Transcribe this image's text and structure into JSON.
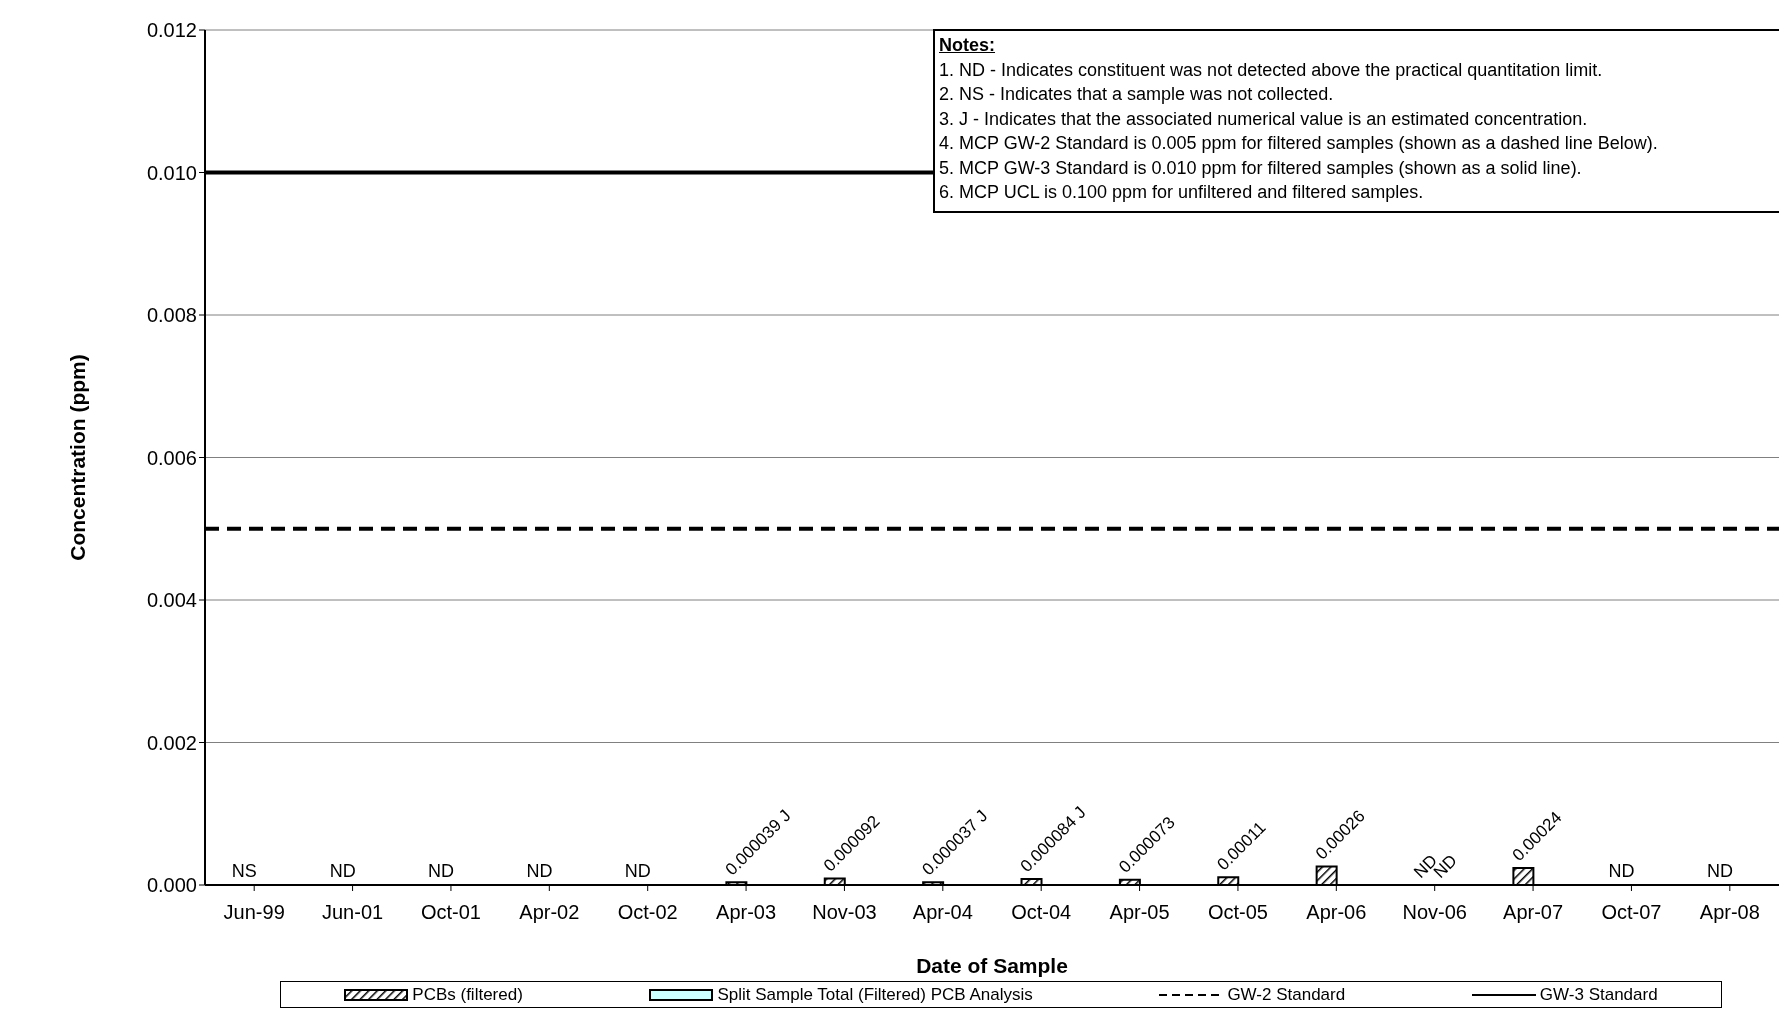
{
  "chart_data": {
    "type": "bar",
    "xlabel": "Date of Sample",
    "ylabel": "Concentration (ppm)",
    "categories": [
      "Jun-99",
      "Jun-01",
      "Oct-01",
      "Apr-02",
      "Oct-02",
      "Apr-03",
      "Nov-03",
      "Apr-04",
      "Oct-04",
      "Apr-05",
      "Oct-05",
      "Apr-06",
      "Nov-06",
      "Apr-07",
      "Oct-07",
      "Apr-08"
    ],
    "series": [
      {
        "name": "PCBs (filtered)",
        "color": "#000000",
        "values": [
          0,
          0,
          0,
          0,
          0,
          3.9e-05,
          9.2e-05,
          3.7e-05,
          8.4e-05,
          7.3e-05,
          0.00011,
          0.00026,
          0,
          0.00024,
          0,
          0
        ],
        "value_labels": [
          "NS",
          "ND",
          "ND",
          "ND",
          "ND",
          "0.000039 J",
          "0.000092",
          "0.000037 J",
          "0.000084 J",
          "0.000073",
          "0.00011",
          "0.00026",
          "ND",
          "0.00024",
          "ND",
          "ND"
        ]
      },
      {
        "name": "Split Sample Total (Filtered) PCB Analysis",
        "color": "#ccffff",
        "values": [
          null,
          null,
          null,
          null,
          null,
          null,
          null,
          null,
          null,
          null,
          null,
          null,
          0,
          null,
          null,
          null
        ],
        "value_labels": [
          null,
          null,
          null,
          null,
          null,
          null,
          null,
          null,
          null,
          null,
          null,
          null,
          "ND",
          null,
          null,
          null
        ]
      }
    ],
    "ylim": [
      0,
      0.012
    ],
    "yticks": [
      {
        "value": 0,
        "label": "0.000"
      },
      {
        "value": 0.002,
        "label": "0.002"
      },
      {
        "value": 0.004,
        "label": "0.004"
      },
      {
        "value": 0.006,
        "label": "0.006"
      },
      {
        "value": 0.008,
        "label": "0.008"
      },
      {
        "value": 0.01,
        "label": "0.010"
      },
      {
        "value": 0.012,
        "label": "0.012"
      }
    ],
    "grid": "y",
    "legend": "bottom",
    "ref_lines": [
      {
        "axis": "y",
        "value": 0.005,
        "label": "GW-2 Standard",
        "color": "#000000",
        "line_style": "dashed"
      },
      {
        "axis": "y",
        "value": 0.01,
        "label": "GW-3 Standard",
        "color": "#000000",
        "line_style": "solid"
      }
    ],
    "annotations": [
      "Notes:",
      "1. ND - Indicates constituent was not detected above the practical quantitation limit.",
      "2. NS - Indicates that a sample was not collected.",
      "3. J - Indicates that the associated numerical value is an estimated concentration.",
      "4. MCP GW-2 Standard is 0.005 ppm for filtered samples (shown as a dashed line Below).",
      "5. MCP GW-3 Standard is 0.010 ppm for filtered samples (shown as a solid line).",
      "6. MCP UCL is 0.100 ppm for unfiltered and filtered samples."
    ]
  }
}
